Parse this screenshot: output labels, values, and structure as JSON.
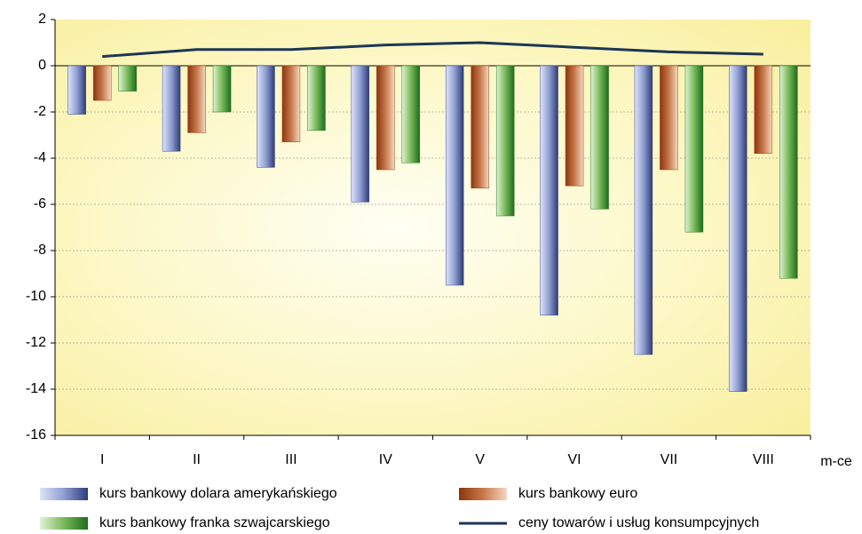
{
  "chart_data": {
    "type": "bar",
    "x_label": "m-ce",
    "categories": [
      "I",
      "II",
      "III",
      "IV",
      "V",
      "VI",
      "VII",
      "VIII"
    ],
    "series": [
      {
        "name": "kurs bankowy dolara amerykańskiego",
        "color": "#3a4c8c",
        "values": [
          -2.1,
          -3.7,
          -4.4,
          -5.9,
          -9.5,
          -10.8,
          -12.5,
          -14.1
        ]
      },
      {
        "name": "kurs bankowy euro",
        "color": "#9a4418",
        "values": [
          -1.5,
          -2.9,
          -3.3,
          -4.5,
          -5.3,
          -5.2,
          -4.5,
          -3.8
        ]
      },
      {
        "name": "kurs bankowy franka szwajcarskiego",
        "color": "#1f7a1f",
        "values": [
          -1.1,
          -2.0,
          -2.8,
          -4.2,
          -6.5,
          -6.2,
          -7.2,
          -9.2
        ]
      },
      {
        "name": "ceny towarów i usług konsumpcyjnych",
        "color": "#1c3656",
        "type": "line",
        "values": [
          0.4,
          0.7,
          0.7,
          0.9,
          1.0,
          0.8,
          0.6,
          0.5
        ]
      }
    ],
    "ylim": [
      -16,
      2
    ],
    "yticks": [
      -16,
      -14,
      -12,
      -10,
      -8,
      -6,
      -4,
      -2,
      0,
      2
    ],
    "grid": true
  }
}
